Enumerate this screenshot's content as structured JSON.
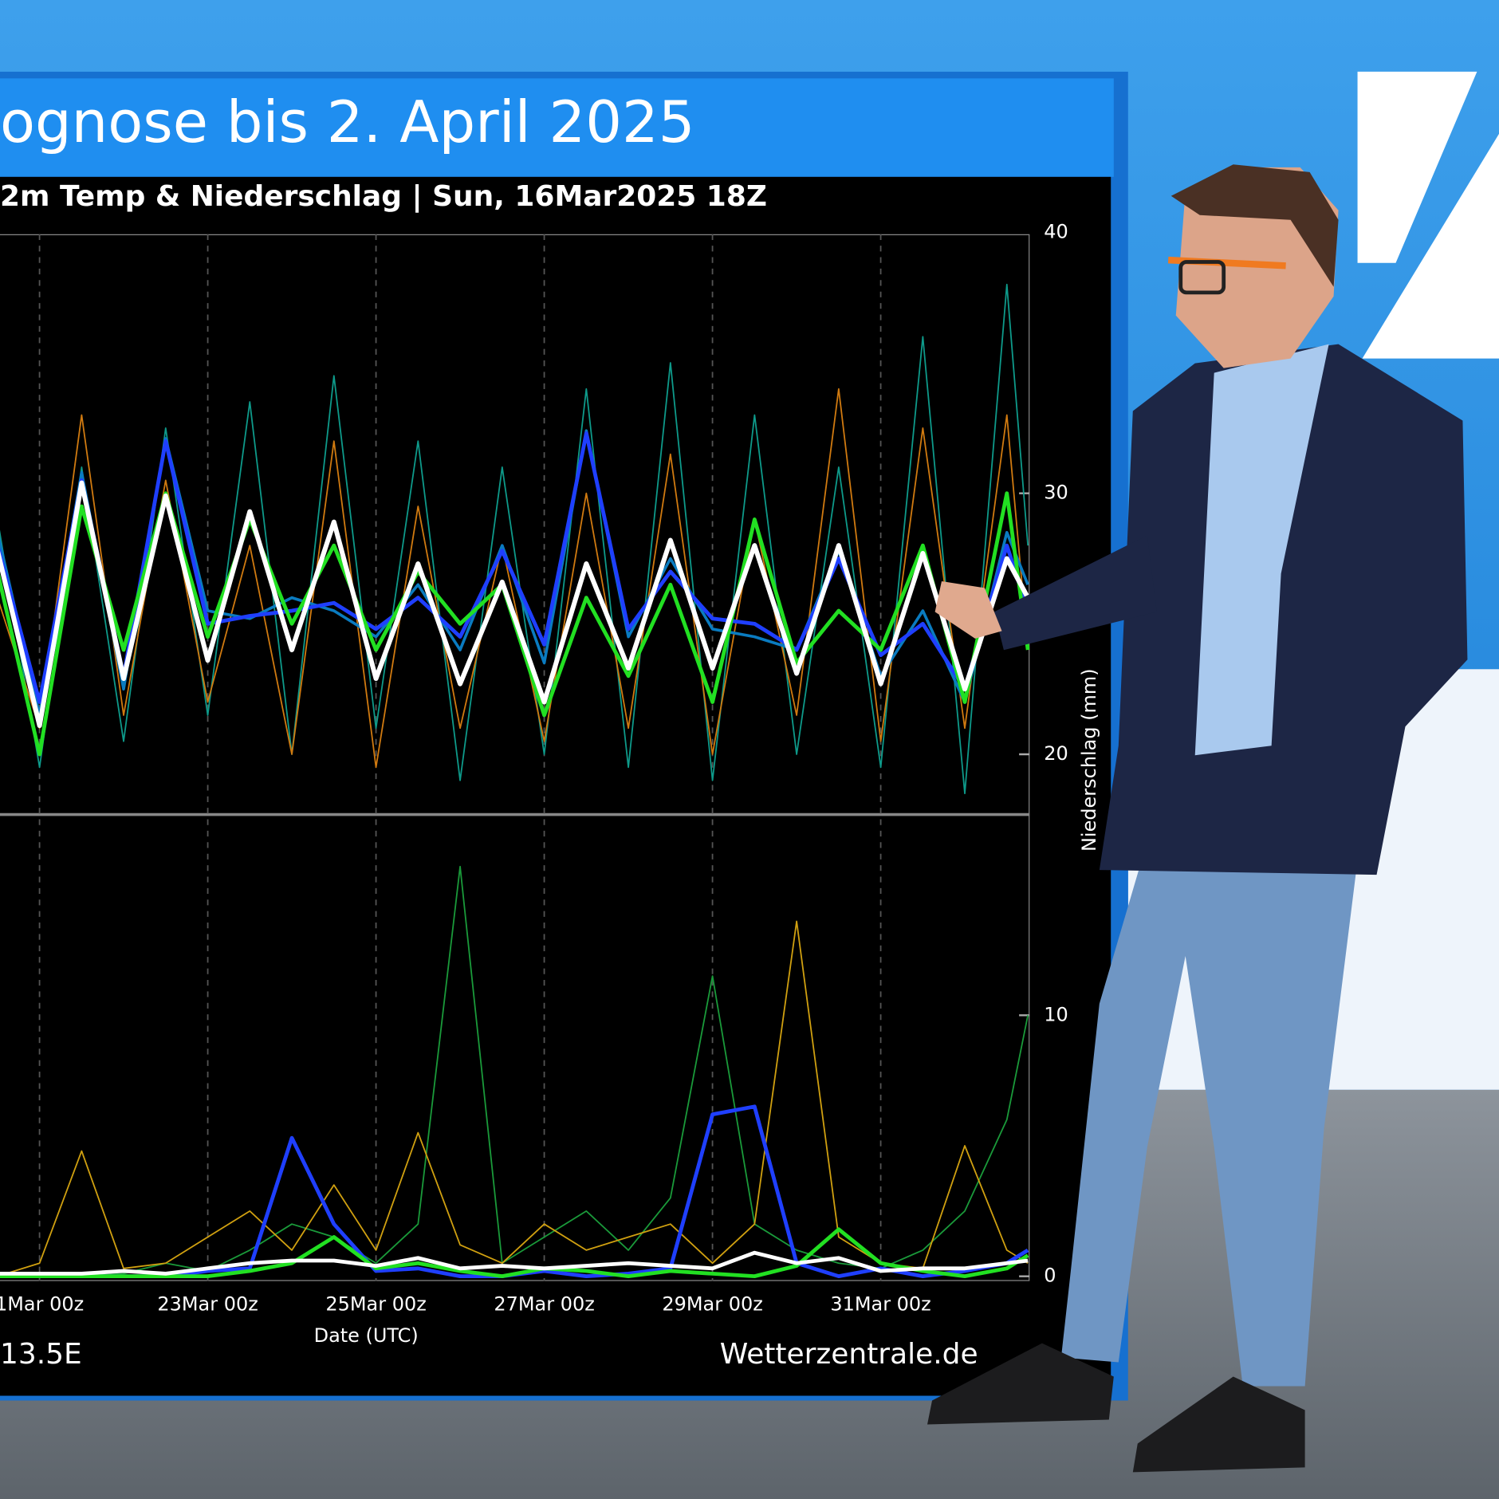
{
  "header": "ognose bis 2. April 2025",
  "chart_data": {
    "type": "line",
    "title": "2m Temp & Niederschlag | Sun, 16Mar2025 18Z",
    "xlabel": "Date (UTC)",
    "ylabel": "Niederschlag (mm)",
    "x": [
      20.5,
      21,
      21.5,
      22,
      22.5,
      23,
      23.5,
      24,
      24.5,
      25,
      25.5,
      26,
      26.5,
      27,
      27.5,
      28,
      28.5,
      29,
      29.5,
      30,
      30.5,
      31,
      31.5,
      32,
      32.5,
      32.75
    ],
    "xlim": [
      20.53,
      32.77
    ],
    "xticks": [
      {
        "value": 21,
        "label": "1Mar 00z"
      },
      {
        "value": 23,
        "label": "23Mar 00z"
      },
      {
        "value": 25,
        "label": "25Mar 00z"
      },
      {
        "value": 27,
        "label": "27Mar 00z"
      },
      {
        "value": 29,
        "label": "29Mar 00z"
      },
      {
        "value": 31,
        "label": "31Mar 00z"
      }
    ],
    "ylim": [
      0,
      40
    ],
    "yticks": [
      0,
      10,
      20,
      30,
      40
    ],
    "grid": true,
    "series": [
      {
        "color": "#0e9a8a",
        "line_width": 1.5,
        "values": [
          29.0,
          19.5,
          31.0,
          20.5,
          32.5,
          21.5,
          33.5,
          20.0,
          34.5,
          21.0,
          32.0,
          19.0,
          31.0,
          20.0,
          34.0,
          19.5,
          35.0,
          19.0,
          33.0,
          20.0,
          31.0,
          19.5,
          36.0,
          18.5,
          38.0,
          28.0
        ]
      },
      {
        "color": "#d07a10",
        "line_width": 1.5,
        "values": [
          26.0,
          21.0,
          33.0,
          21.5,
          30.5,
          22.0,
          28.0,
          20.0,
          32.0,
          19.5,
          29.5,
          21.0,
          28.0,
          20.5,
          30.0,
          21.0,
          31.5,
          20.0,
          29.0,
          21.5,
          34.0,
          20.5,
          32.5,
          21.0,
          33.0,
          24.0
        ]
      },
      {
        "color": "#0a7bc0",
        "line_width": 3,
        "values": [
          28.5,
          21.5,
          30.8,
          22.5,
          32.1,
          25.5,
          25.2,
          26.0,
          25.5,
          24.5,
          26.5,
          24.0,
          28.0,
          23.5,
          32.4,
          24.5,
          27.5,
          24.8,
          24.5,
          24.0,
          27.8,
          23.0,
          25.5,
          22.0,
          28.5,
          26.5
        ]
      },
      {
        "color": "#1f3fff",
        "line_width": 4,
        "values": [
          28.0,
          22.0,
          30.5,
          23.0,
          32.0,
          25.0,
          25.3,
          25.5,
          25.8,
          24.8,
          26.0,
          24.5,
          27.8,
          24.2,
          32.3,
          24.8,
          27.0,
          25.2,
          25.0,
          24.0,
          27.5,
          23.8,
          25.0,
          22.5,
          28.0,
          25.5
        ]
      },
      {
        "color": "#22e022",
        "line_width": 4,
        "values": [
          27.0,
          20.0,
          29.5,
          24.0,
          30.0,
          24.5,
          29.0,
          25.0,
          28.0,
          24.0,
          27.0,
          25.0,
          26.5,
          21.5,
          26.0,
          23.0,
          26.5,
          22.0,
          29.0,
          23.5,
          25.5,
          24.0,
          28.0,
          22.0,
          30.0,
          24.0
        ]
      },
      {
        "color": "#ffffff",
        "line_width": 5,
        "values": [
          27.8,
          21.1,
          30.4,
          22.9,
          29.9,
          23.6,
          29.3,
          24.0,
          28.9,
          22.9,
          27.3,
          22.7,
          26.6,
          22.0,
          27.3,
          23.3,
          28.2,
          23.3,
          28.0,
          23.1,
          28.0,
          22.7,
          27.7,
          22.5,
          27.5,
          26.0
        ]
      },
      {
        "color": "#1a9a3a",
        "line_width": 1.5,
        "values": [
          0,
          0,
          0,
          0.1,
          0.5,
          0.2,
          1.0,
          2.0,
          1.5,
          0.5,
          2.0,
          15.7,
          0.5,
          1.5,
          2.5,
          1.0,
          3.0,
          11.5,
          2.0,
          1.0,
          0.5,
          0.3,
          1.0,
          2.5,
          6.0,
          10.0
        ]
      },
      {
        "color": "#d0a010",
        "line_width": 1.5,
        "values": [
          0,
          0.5,
          4.8,
          0.3,
          0.5,
          1.5,
          2.5,
          1.0,
          3.5,
          1.0,
          5.5,
          1.2,
          0.5,
          2.0,
          1.0,
          1.5,
          2.0,
          0.5,
          2.0,
          13.6,
          1.5,
          0.5,
          0.3,
          5.0,
          1.0,
          0.5
        ]
      },
      {
        "color": "#1f3fff",
        "line_width": 4,
        "values": [
          0,
          0,
          0,
          0,
          0,
          0.2,
          0.3,
          5.3,
          2.0,
          0.2,
          0.3,
          0,
          0,
          0.2,
          0,
          0.1,
          0.3,
          6.2,
          6.5,
          0.5,
          0,
          0.3,
          0,
          0.2,
          0.5,
          1.0
        ]
      },
      {
        "color": "#22e022",
        "line_width": 4,
        "values": [
          0,
          0,
          0,
          0,
          0,
          0,
          0.2,
          0.5,
          1.5,
          0.3,
          0.5,
          0.2,
          0,
          0.3,
          0.2,
          0,
          0.2,
          0.1,
          0,
          0.4,
          1.8,
          0.5,
          0.2,
          0,
          0.3,
          0.8
        ]
      },
      {
        "color": "#ffffff",
        "line_width": 4,
        "values": [
          0.1,
          0.1,
          0.1,
          0.2,
          0.1,
          0.3,
          0.5,
          0.6,
          0.6,
          0.4,
          0.7,
          0.3,
          0.4,
          0.3,
          0.4,
          0.5,
          0.4,
          0.3,
          0.9,
          0.5,
          0.7,
          0.2,
          0.3,
          0.3,
          0.5,
          0.6
        ]
      }
    ]
  },
  "footer": {
    "location": "13.5E",
    "source": "Wetterzentrale.de"
  }
}
